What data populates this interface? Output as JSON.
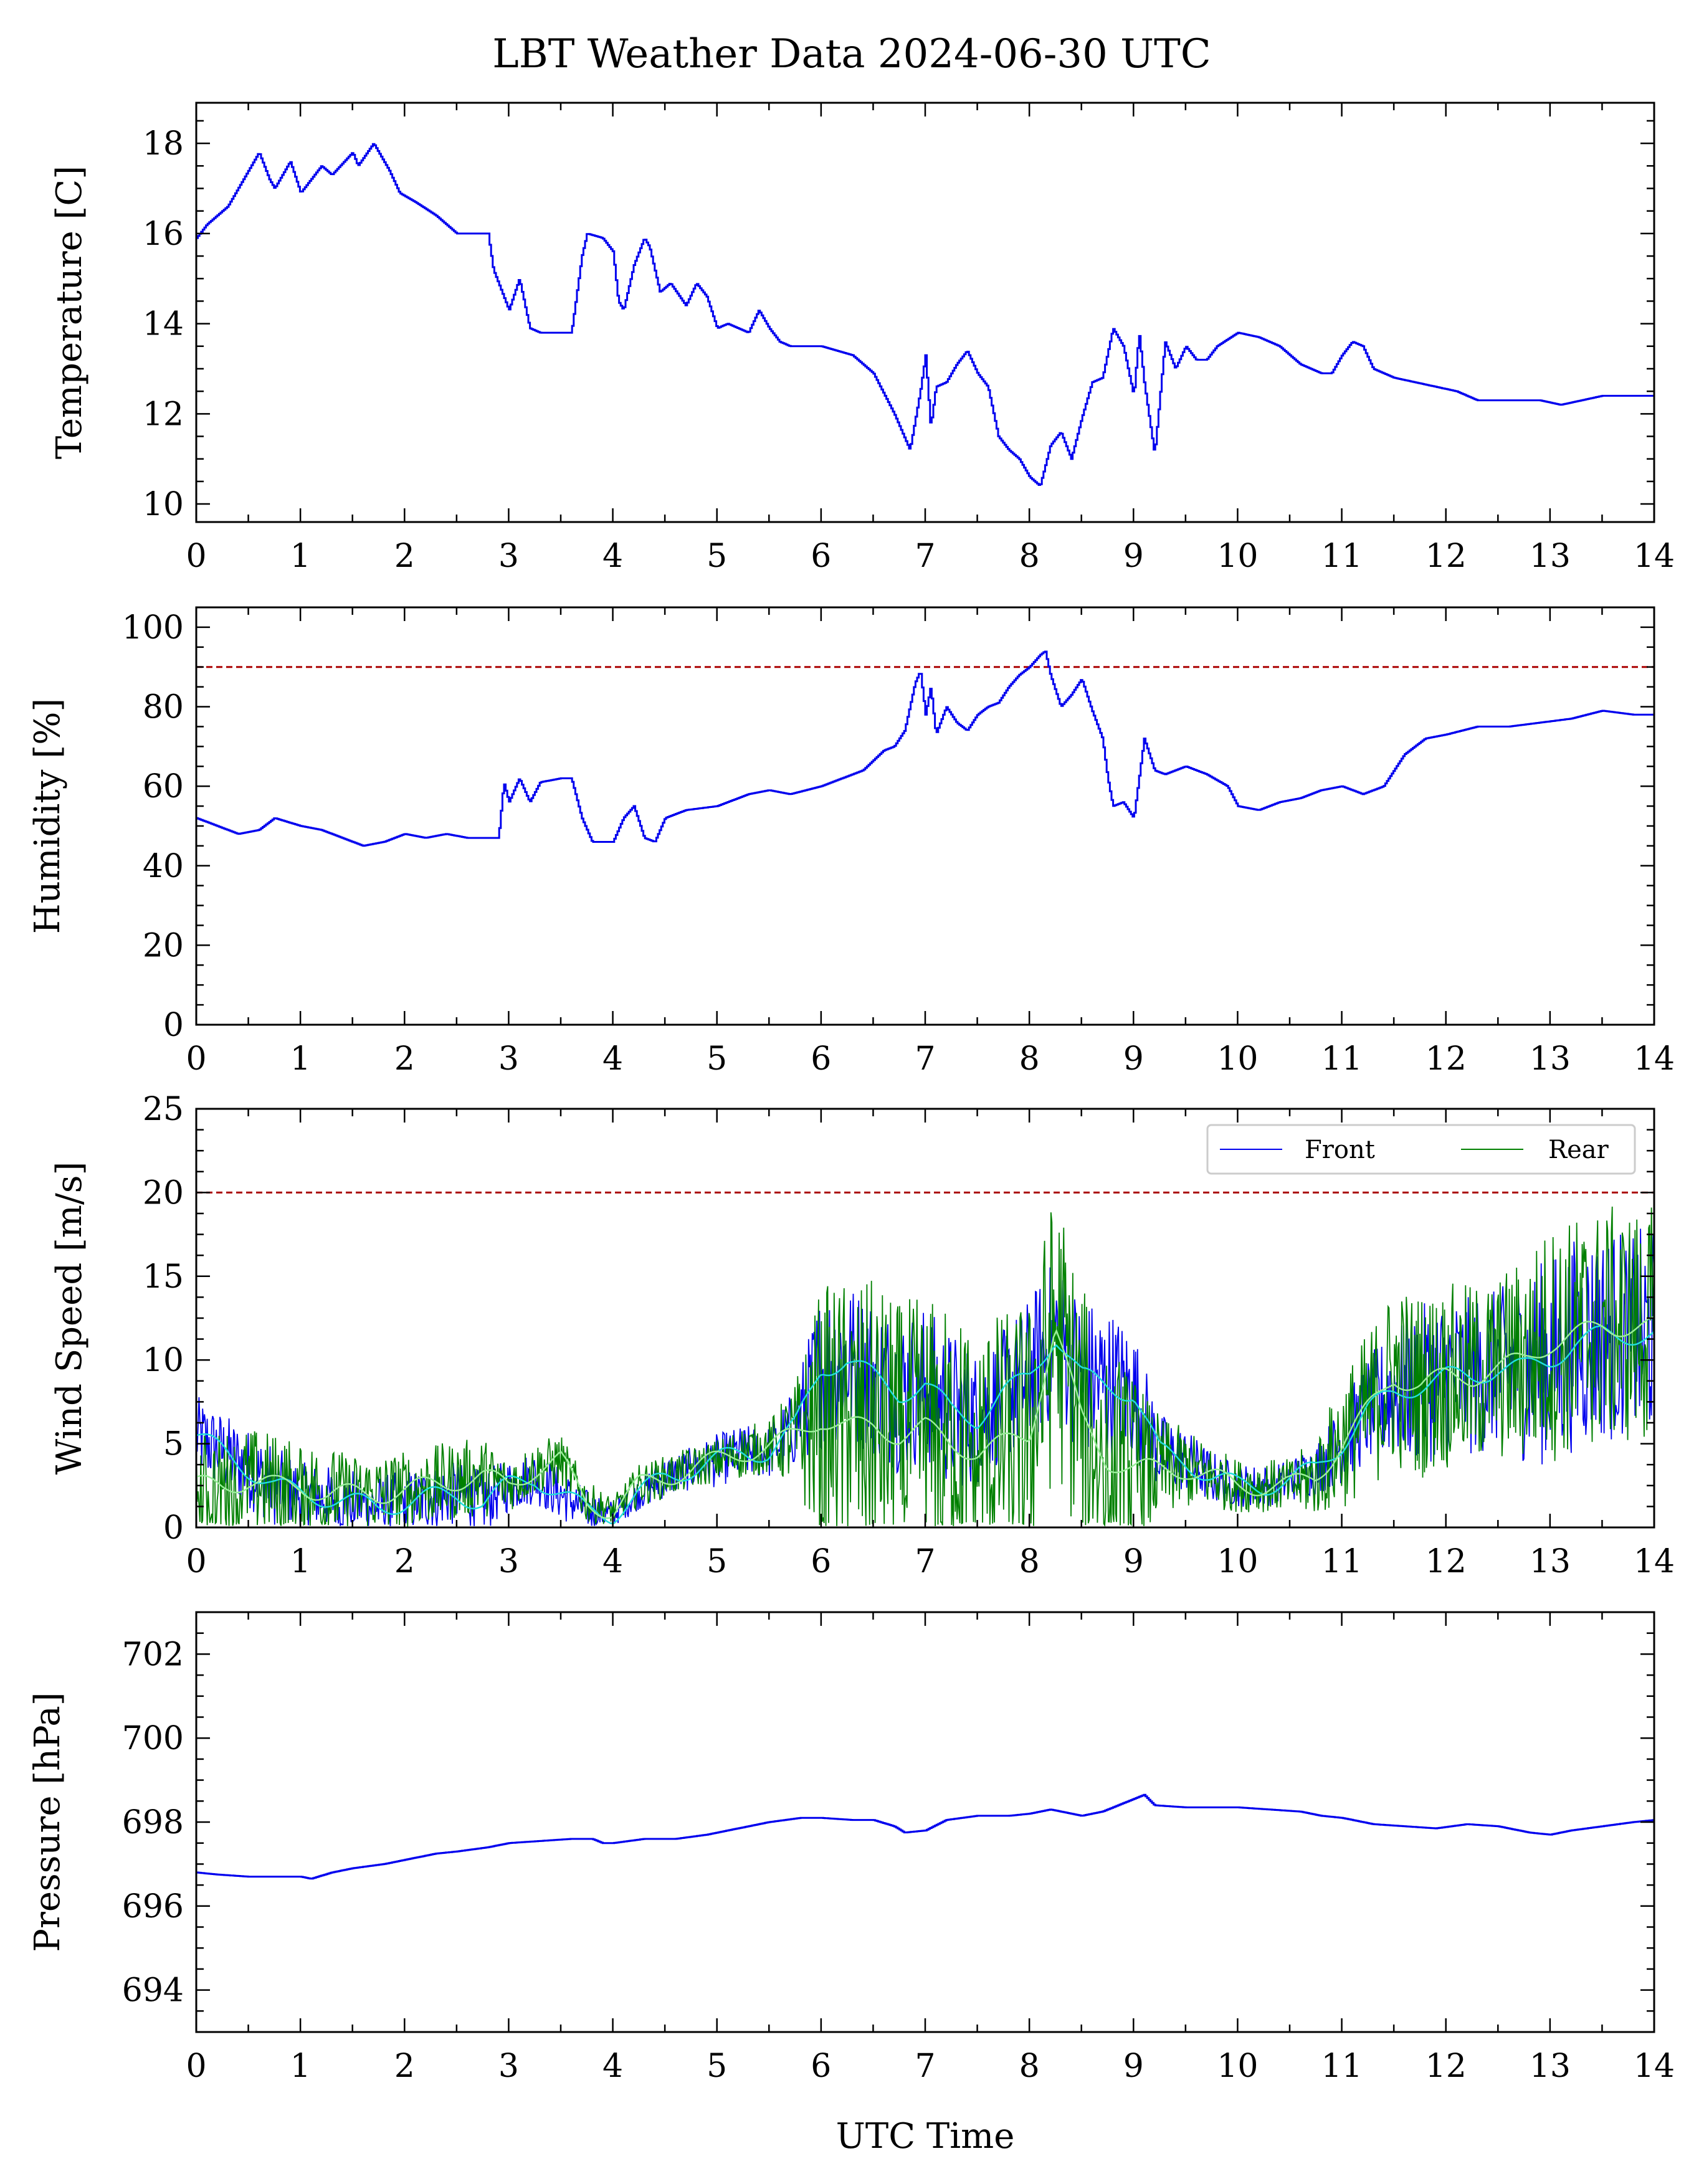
{
  "figure": {
    "title": "LBT Weather Data 2024-06-30 UTC",
    "xlabel": "UTC Time"
  },
  "colors": {
    "front": "#0000ee",
    "rear": "#008000",
    "front_smooth": "#22dddd",
    "rear_smooth": "#99ee99",
    "threshold": "#aa0000"
  },
  "chart_data": [
    {
      "type": "line",
      "id": "temperature",
      "ylabel": "Temperature [C]",
      "xlim": [
        0,
        14
      ],
      "ylim": [
        9.6,
        18.9
      ],
      "xticks": [
        0,
        1,
        2,
        3,
        4,
        5,
        6,
        7,
        8,
        9,
        10,
        11,
        12,
        13,
        14
      ],
      "yticks": [
        10,
        12,
        14,
        16,
        18
      ],
      "series": [
        {
          "color": "#0000ee",
          "x": [
            0,
            0.1,
            0.3,
            0.5,
            0.6,
            0.7,
            0.75,
            0.9,
            1.0,
            1.1,
            1.2,
            1.3,
            1.5,
            1.55,
            1.7,
            1.75,
            1.85,
            1.95,
            2.1,
            2.3,
            2.5,
            2.8,
            2.85,
            2.9,
            3.0,
            3.1,
            3.2,
            3.3,
            3.4,
            3.6,
            3.7,
            3.75,
            3.9,
            4.0,
            4.05,
            4.1,
            4.2,
            4.3,
            4.35,
            4.45,
            4.55,
            4.7,
            4.8,
            4.9,
            5.0,
            5.1,
            5.3,
            5.4,
            5.5,
            5.6,
            5.7,
            6.0,
            6.3,
            6.5,
            6.7,
            6.85,
            6.95,
            7.0,
            7.05,
            7.1,
            7.2,
            7.3,
            7.4,
            7.5,
            7.6,
            7.7,
            7.8,
            7.9,
            8.0,
            8.1,
            8.2,
            8.3,
            8.4,
            8.5,
            8.6,
            8.7,
            8.8,
            8.9,
            9.0,
            9.05,
            9.1,
            9.2,
            9.3,
            9.4,
            9.5,
            9.6,
            9.7,
            9.8,
            10.0,
            10.2,
            10.4,
            10.6,
            10.8,
            10.9,
            11.0,
            11.1,
            11.2,
            11.3,
            11.5,
            11.7,
            11.9,
            12.1,
            12.3,
            12.5,
            12.7,
            12.9,
            13.1,
            13.3,
            13.5,
            13.7,
            13.9,
            14.0
          ],
          "y": [
            15.9,
            16.2,
            16.6,
            17.4,
            17.8,
            17.2,
            17.0,
            17.6,
            16.9,
            17.2,
            17.5,
            17.3,
            17.8,
            17.5,
            18.0,
            17.8,
            17.4,
            16.9,
            16.7,
            16.4,
            16.0,
            16.0,
            15.2,
            14.9,
            14.3,
            15.0,
            13.9,
            13.8,
            13.8,
            13.8,
            15.5,
            16.0,
            15.9,
            15.6,
            14.5,
            14.3,
            15.3,
            15.9,
            15.7,
            14.7,
            14.9,
            14.4,
            14.9,
            14.6,
            13.9,
            14.0,
            13.8,
            14.3,
            13.9,
            13.6,
            13.5,
            13.5,
            13.3,
            12.9,
            12.0,
            11.2,
            12.5,
            13.3,
            11.7,
            12.6,
            12.7,
            13.1,
            13.4,
            12.9,
            12.6,
            11.5,
            11.2,
            11.0,
            10.6,
            10.4,
            11.3,
            11.6,
            11.0,
            11.9,
            12.7,
            12.8,
            13.9,
            13.5,
            12.4,
            13.8,
            12.7,
            11.1,
            13.6,
            13.0,
            13.5,
            13.2,
            13.2,
            13.5,
            13.8,
            13.7,
            13.5,
            13.1,
            12.9,
            12.9,
            13.3,
            13.6,
            13.5,
            13.0,
            12.8,
            12.7,
            12.6,
            12.5,
            12.3,
            12.3,
            12.3,
            12.3,
            12.2,
            12.3,
            12.4,
            12.4,
            12.4,
            12.4
          ]
        }
      ]
    },
    {
      "type": "line",
      "id": "humidity",
      "ylabel": "Humidity [%]",
      "xlim": [
        0,
        14
      ],
      "ylim": [
        0,
        105
      ],
      "xticks": [
        0,
        1,
        2,
        3,
        4,
        5,
        6,
        7,
        8,
        9,
        10,
        11,
        12,
        13,
        14
      ],
      "yticks": [
        0,
        20,
        40,
        60,
        80,
        100
      ],
      "threshold": 90,
      "series": [
        {
          "color": "#0000ee",
          "x": [
            0,
            0.2,
            0.4,
            0.6,
            0.75,
            1.0,
            1.2,
            1.4,
            1.6,
            1.8,
            2.0,
            2.2,
            2.4,
            2.6,
            2.8,
            2.9,
            2.95,
            3.0,
            3.1,
            3.2,
            3.3,
            3.5,
            3.6,
            3.7,
            3.8,
            4.0,
            4.1,
            4.2,
            4.3,
            4.4,
            4.5,
            4.7,
            5.0,
            5.3,
            5.5,
            5.7,
            6.0,
            6.2,
            6.4,
            6.6,
            6.7,
            6.8,
            6.9,
            6.95,
            7.0,
            7.05,
            7.1,
            7.2,
            7.3,
            7.4,
            7.5,
            7.6,
            7.7,
            7.8,
            7.9,
            8.0,
            8.1,
            8.15,
            8.2,
            8.3,
            8.4,
            8.5,
            8.6,
            8.7,
            8.75,
            8.8,
            8.9,
            9.0,
            9.1,
            9.2,
            9.3,
            9.5,
            9.7,
            9.9,
            10.0,
            10.2,
            10.4,
            10.6,
            10.8,
            11.0,
            11.2,
            11.4,
            11.6,
            11.8,
            12.0,
            12.3,
            12.6,
            12.9,
            13.2,
            13.5,
            13.8,
            14.0
          ],
          "y": [
            52,
            50,
            48,
            49,
            52,
            50,
            49,
            47,
            45,
            46,
            48,
            47,
            48,
            47,
            47,
            47,
            61,
            56,
            62,
            56,
            61,
            62,
            62,
            52,
            46,
            46,
            52,
            55,
            47,
            46,
            52,
            54,
            55,
            58,
            59,
            58,
            60,
            62,
            64,
            69,
            70,
            74,
            86,
            89,
            78,
            85,
            73,
            80,
            76,
            74,
            78,
            80,
            81,
            85,
            88,
            90,
            93,
            94,
            88,
            80,
            83,
            87,
            79,
            72,
            62,
            55,
            56,
            52,
            72,
            64,
            63,
            65,
            63,
            60,
            55,
            54,
            56,
            57,
            59,
            60,
            58,
            60,
            68,
            72,
            73,
            75,
            75,
            76,
            77,
            79,
            78,
            78
          ]
        }
      ]
    },
    {
      "type": "line",
      "id": "wind-speed",
      "ylabel": "Wind Speed [m/s]",
      "xlim": [
        0,
        14
      ],
      "ylim": [
        0,
        25
      ],
      "xticks": [
        0,
        1,
        2,
        3,
        4,
        5,
        6,
        7,
        8,
        9,
        10,
        11,
        12,
        13,
        14
      ],
      "yticks": [
        0,
        5,
        10,
        15,
        20,
        25
      ],
      "threshold": 20,
      "legend": {
        "placement": "top-right",
        "columns": 2
      },
      "series": [
        {
          "name": "Front",
          "color": "#0000ee",
          "x": [
            0,
            0.25,
            0.5,
            0.75,
            1.0,
            1.25,
            1.5,
            1.75,
            2.0,
            2.25,
            2.5,
            2.75,
            3.0,
            3.25,
            3.5,
            3.75,
            4.0,
            4.25,
            4.5,
            4.75,
            5.0,
            5.25,
            5.5,
            5.75,
            6.0,
            6.25,
            6.5,
            6.75,
            7.0,
            7.25,
            7.5,
            7.75,
            8.0,
            8.25,
            8.5,
            8.75,
            9.0,
            9.25,
            9.5,
            9.75,
            10.0,
            10.25,
            10.5,
            10.75,
            11.0,
            11.25,
            11.5,
            11.75,
            12.0,
            12.25,
            12.5,
            12.75,
            13.0,
            13.25,
            13.5,
            13.75,
            14.0
          ],
          "y": [
            5.5,
            4.5,
            3.5,
            2.5,
            2.0,
            1.8,
            1.5,
            1.2,
            1.5,
            1.8,
            2.0,
            1.5,
            2.5,
            3.0,
            2.0,
            1.0,
            0.8,
            2.0,
            3.0,
            3.5,
            4.0,
            4.5,
            4.5,
            6.0,
            9.5,
            10.0,
            9.0,
            8.0,
            8.5,
            7.0,
            6.5,
            8.0,
            9.0,
            11.5,
            9.0,
            8.5,
            8.0,
            4.5,
            4.0,
            3.0,
            2.5,
            2.5,
            2.8,
            3.5,
            5.0,
            7.0,
            8.0,
            8.5,
            9.0,
            9.0,
            9.5,
            9.5,
            10.0,
            11.0,
            11.5,
            11.5,
            11.5
          ],
          "amp": [
            1.5,
            1.5,
            1.5,
            1.5,
            1.2,
            1.2,
            1.2,
            1.2,
            1.2,
            1.2,
            1.2,
            1.2,
            1.0,
            1.0,
            1.0,
            0.8,
            0.5,
            0.6,
            0.8,
            0.8,
            1.0,
            1.0,
            1.0,
            1.5,
            3.0,
            3.0,
            3.0,
            3.0,
            3.0,
            3.0,
            2.5,
            2.5,
            3.0,
            3.0,
            3.0,
            3.0,
            2.5,
            1.5,
            1.2,
            1.0,
            0.8,
            0.8,
            0.8,
            1.0,
            1.5,
            2.0,
            2.5,
            3.0,
            3.0,
            3.0,
            3.0,
            3.5,
            4.0,
            4.0,
            4.0,
            4.0,
            4.0
          ],
          "smooth_color": "#22dddd"
        },
        {
          "name": "Rear",
          "color": "#008000",
          "x": [
            0,
            0.25,
            0.5,
            0.75,
            1.0,
            1.25,
            1.5,
            1.75,
            2.0,
            2.25,
            2.5,
            2.75,
            3.0,
            3.25,
            3.5,
            3.75,
            4.0,
            4.25,
            4.5,
            4.75,
            5.0,
            5.25,
            5.5,
            5.75,
            6.0,
            6.25,
            6.5,
            6.75,
            7.0,
            7.25,
            7.5,
            7.75,
            8.0,
            8.25,
            8.5,
            8.75,
            9.0,
            9.25,
            9.5,
            9.75,
            10.0,
            10.25,
            10.5,
            10.75,
            11.0,
            11.25,
            11.5,
            11.75,
            12.0,
            12.25,
            12.5,
            12.75,
            13.0,
            13.25,
            13.5,
            13.75,
            14.0
          ],
          "y": [
            2.5,
            2.5,
            2.8,
            2.5,
            2.5,
            2.0,
            2.0,
            2.0,
            2.2,
            2.5,
            2.8,
            3.0,
            2.5,
            3.5,
            4.0,
            1.5,
            1.0,
            2.5,
            3.0,
            3.5,
            4.0,
            4.5,
            4.8,
            5.5,
            6.5,
            6.0,
            6.0,
            5.5,
            6.0,
            5.0,
            4.5,
            5.0,
            5.5,
            12.0,
            6.5,
            4.0,
            3.5,
            3.5,
            3.5,
            3.0,
            2.5,
            2.5,
            2.5,
            3.0,
            5.0,
            7.0,
            9.0,
            8.5,
            9.0,
            9.0,
            9.5,
            10.0,
            11.0,
            11.5,
            12.0,
            12.0,
            12.0
          ],
          "amp": [
            2.0,
            2.0,
            2.0,
            2.0,
            1.8,
            1.8,
            1.5,
            1.5,
            1.5,
            1.5,
            1.5,
            1.5,
            1.0,
            1.0,
            1.0,
            0.8,
            0.5,
            0.8,
            0.8,
            0.8,
            0.8,
            1.0,
            1.0,
            2.0,
            5.0,
            5.5,
            5.5,
            5.0,
            5.0,
            5.0,
            5.0,
            5.0,
            5.0,
            5.5,
            5.0,
            4.5,
            3.5,
            2.0,
            1.5,
            1.2,
            1.0,
            1.0,
            1.0,
            1.5,
            2.5,
            3.0,
            3.5,
            3.5,
            3.5,
            3.5,
            3.5,
            4.0,
            4.5,
            4.5,
            4.5,
            4.5,
            4.5
          ],
          "smooth_color": "#99ee99"
        }
      ]
    },
    {
      "type": "line",
      "id": "pressure",
      "ylabel": "Pressure [hPa]",
      "xlim": [
        0,
        14
      ],
      "ylim": [
        693,
        703
      ],
      "xticks": [
        0,
        1,
        2,
        3,
        4,
        5,
        6,
        7,
        8,
        9,
        10,
        11,
        12,
        13,
        14
      ],
      "yticks": [
        694,
        696,
        698,
        700,
        702
      ],
      "series": [
        {
          "color": "#0000ee",
          "x": [
            0,
            0.2,
            0.5,
            0.8,
            1.0,
            1.1,
            1.3,
            1.5,
            1.8,
            2.0,
            2.3,
            2.5,
            2.8,
            3.0,
            3.3,
            3.6,
            3.8,
            3.9,
            4.0,
            4.3,
            4.6,
            4.9,
            5.2,
            5.5,
            5.8,
            6.0,
            6.3,
            6.5,
            6.7,
            6.8,
            7.0,
            7.2,
            7.5,
            7.8,
            8.0,
            8.2,
            8.5,
            8.7,
            8.9,
            9.1,
            9.2,
            9.5,
            9.8,
            10.0,
            10.3,
            10.6,
            10.8,
            11.0,
            11.3,
            11.6,
            11.9,
            12.2,
            12.5,
            12.8,
            13.0,
            13.2,
            13.5,
            13.8,
            14.0
          ],
          "y": [
            696.8,
            696.75,
            696.7,
            696.7,
            696.7,
            696.65,
            696.8,
            696.9,
            697.0,
            697.1,
            697.25,
            697.3,
            697.4,
            697.5,
            697.55,
            697.6,
            697.6,
            697.5,
            697.5,
            697.6,
            697.6,
            697.7,
            697.85,
            698.0,
            698.1,
            698.1,
            698.05,
            698.05,
            697.9,
            697.75,
            697.8,
            698.05,
            698.15,
            698.15,
            698.2,
            698.3,
            698.15,
            698.25,
            698.45,
            698.65,
            698.4,
            698.35,
            698.35,
            698.35,
            698.3,
            698.25,
            698.15,
            698.1,
            697.95,
            697.9,
            697.85,
            697.95,
            697.9,
            697.75,
            697.7,
            697.8,
            697.9,
            698.0,
            698.05
          ]
        }
      ]
    }
  ]
}
